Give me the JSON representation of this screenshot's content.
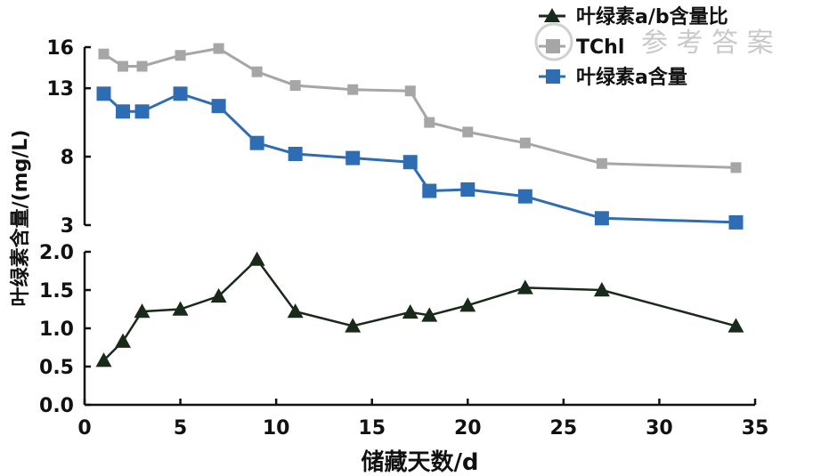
{
  "chart_data": {
    "type": "line",
    "xlabel": "储藏天数/d",
    "ylabel": "叶绿素含量/(mg/L)",
    "x_ticks": [
      "0",
      "5",
      "10",
      "15",
      "20",
      "25",
      "30",
      "35"
    ],
    "xlim": [
      0,
      35
    ],
    "panels": [
      {
        "ylim": [
          3,
          16
        ],
        "y_ticks": [
          "3",
          "8",
          "13",
          "16"
        ],
        "series": [
          {
            "name": "TChl",
            "color": "#a6a6a6",
            "marker": "square",
            "x": [
              1,
              2,
              3,
              5,
              7,
              9,
              11,
              14,
              17,
              18,
              20,
              23,
              27,
              34
            ],
            "y": [
              15.5,
              14.6,
              14.6,
              15.4,
              15.9,
              14.2,
              13.2,
              12.9,
              12.8,
              10.5,
              9.8,
              9.0,
              7.5,
              7.2
            ]
          },
          {
            "name": "叶绿素a含量",
            "color": "#2e6db4",
            "marker": "square",
            "x": [
              1,
              2,
              3,
              5,
              7,
              9,
              11,
              14,
              17,
              18,
              20,
              23,
              27,
              34
            ],
            "y": [
              12.6,
              11.3,
              11.3,
              12.6,
              11.7,
              9.0,
              8.2,
              7.9,
              7.6,
              5.5,
              5.6,
              5.1,
              3.5,
              3.2
            ]
          }
        ]
      },
      {
        "ylim": [
          0.0,
          2.0
        ],
        "y_ticks": [
          "0.0",
          "0.5",
          "1.0",
          "1.5",
          "2.0"
        ],
        "series": [
          {
            "name": "叶绿素a/b含量比",
            "color": "#1a2a1a",
            "marker": "triangle",
            "x": [
              1,
              2,
              3,
              5,
              7,
              9,
              11,
              14,
              17,
              18,
              20,
              23,
              27,
              34
            ],
            "y": [
              0.58,
              0.83,
              1.22,
              1.25,
              1.42,
              1.9,
              1.22,
              1.03,
              1.21,
              1.17,
              1.3,
              1.53,
              1.5,
              1.03
            ]
          }
        ]
      }
    ],
    "legend": {
      "placement": "top-right",
      "order": [
        "叶绿素a/b含量比",
        "TChl",
        "叶绿素a含量"
      ]
    },
    "grid": false
  },
  "watermark_text": "参 考 答 案"
}
